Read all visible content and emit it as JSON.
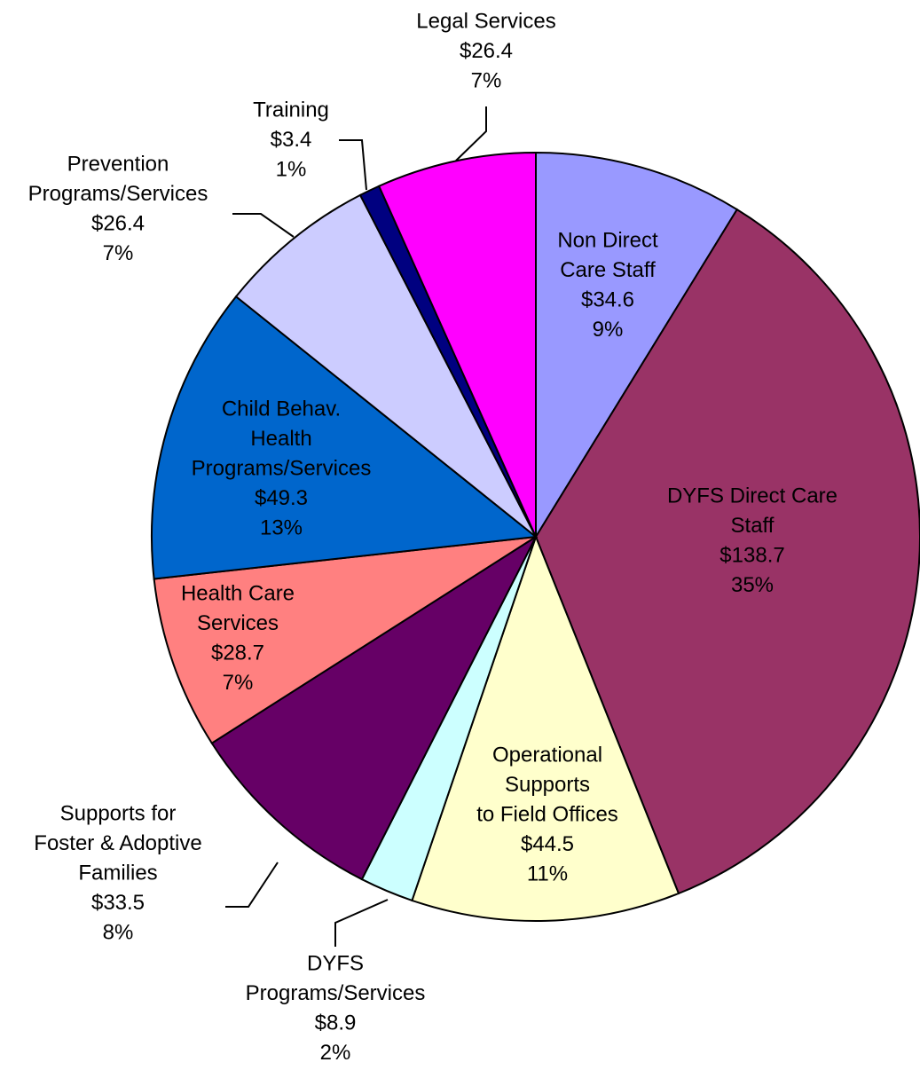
{
  "chart_data": {
    "type": "pie",
    "categories": [
      [
        "Non Direct",
        "Care Staff"
      ],
      [
        "DYFS Direct Care",
        "Staff"
      ],
      [
        "Operational",
        "Supports",
        "to Field Offices"
      ],
      [
        "DYFS",
        "Programs/Services"
      ],
      [
        "Supports for",
        "Foster & Adoptive",
        "Families"
      ],
      [
        "Health Care",
        "Services"
      ],
      [
        "Child Behav.",
        "Health",
        "Programs/Services"
      ],
      [
        "Prevention",
        "Programs/Services"
      ],
      [
        "Training"
      ],
      [
        "Legal Services"
      ]
    ],
    "values": [
      34.6,
      138.7,
      44.5,
      8.9,
      33.5,
      28.7,
      49.3,
      26.4,
      3.4,
      26.4
    ],
    "value_labels": [
      "$34.6",
      "$138.7",
      "$44.5",
      "$8.9",
      "$33.5",
      "$28.7",
      "$49.3",
      "$26.4",
      "$3.4",
      "$26.4"
    ],
    "percents": [
      9,
      35,
      11,
      2,
      8,
      7,
      13,
      7,
      1,
      7
    ],
    "percent_labels": [
      "9%",
      "35%",
      "11%",
      "2%",
      "8%",
      "7%",
      "13%",
      "7%",
      "1%",
      "7%"
    ],
    "colors": [
      "#9999ff",
      "#993366",
      "#ffffcc",
      "#ccffff",
      "#660066",
      "#ff8080",
      "#0066cc",
      "#ccccff",
      "#000080",
      "#ff00ff"
    ]
  }
}
